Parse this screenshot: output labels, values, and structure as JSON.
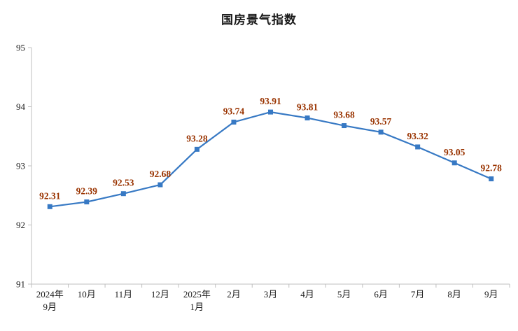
{
  "title": "国房景气指数",
  "chart_data": {
    "type": "line",
    "title": "国房景气指数",
    "categories": [
      "2024年\n9月",
      "10月",
      "11月",
      "12月",
      "2025年\n1月",
      "2月",
      "3月",
      "4月",
      "5月",
      "6月",
      "7月",
      "8月",
      "9月"
    ],
    "values": [
      92.31,
      92.39,
      92.53,
      92.68,
      93.28,
      93.74,
      93.91,
      93.81,
      93.68,
      93.57,
      93.32,
      93.05,
      92.78
    ],
    "xlabel": "",
    "ylabel": "",
    "ylim": [
      91,
      95
    ],
    "yticks": [
      91,
      92,
      93,
      94,
      95
    ],
    "grid": false,
    "legend_position": "none",
    "line_color": "#3779C4",
    "marker": "square",
    "data_label_color": "#993300",
    "axis_color": "#BFBFBF",
    "tick_label_color": "#1a1a1a"
  }
}
